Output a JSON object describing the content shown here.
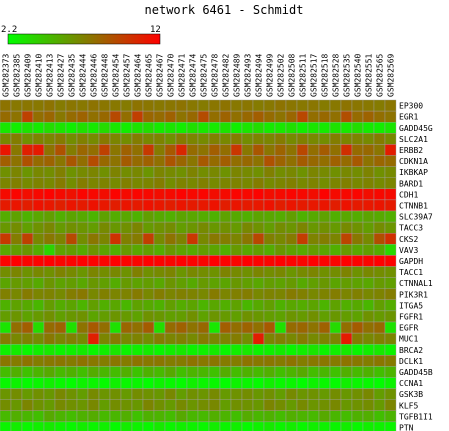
{
  "chart_data": {
    "type": "heatmap",
    "title": "network 6461 - Schmidt",
    "scale": {
      "min_label": "2.2",
      "max_label": "12",
      "min": 2.2,
      "max": 12,
      "low_color": "#00ff00",
      "mid_color": "#808000",
      "high_color": "#ff0000"
    },
    "columns": [
      "GSM282373",
      "GSM282385",
      "GSM282409",
      "GSM282410",
      "GSM282413",
      "GSM282427",
      "GSM282435",
      "GSM282444",
      "GSM282446",
      "GSM282448",
      "GSM282454",
      "GSM282457",
      "GSM282464",
      "GSM282465",
      "GSM282467",
      "GSM282470",
      "GSM282471",
      "GSM282474",
      "GSM282475",
      "GSM282478",
      "GSM282482",
      "GSM282489",
      "GSM282493",
      "GSM282494",
      "GSM282499",
      "GSM282502",
      "GSM282508",
      "GSM282511",
      "GSM282517",
      "GSM282518",
      "GSM282528",
      "GSM282535",
      "GSM282540",
      "GSM282551",
      "GSM282565",
      "GSM282569"
    ],
    "rows": [
      "EP300",
      "EGR1",
      "GADD45G",
      "SLC2A1",
      "ERBB2",
      "CDKN1A",
      "IKBKAP",
      "BARD1",
      "CDH1",
      "CTNNB1",
      "SLC39A7",
      "TACC3",
      "CKS2",
      "VAV3",
      "GAPDH",
      "TACC1",
      "CTNNAL1",
      "PIK3R1",
      "ITGA5",
      "FGFR1",
      "EGFR",
      "MUC1",
      "BRCA2",
      "DCLK1",
      "GADD45B",
      "CCNA1",
      "GSK3B",
      "KLF5",
      "TGFB1I1",
      "PTN"
    ],
    "values": [
      [
        7.6,
        7.4,
        7.5,
        7.4,
        7.6,
        7.3,
        7.5,
        7.4,
        7.6,
        7.5,
        7.4,
        7.3,
        7.6,
        7.5,
        7.4,
        7.5,
        7.6,
        7.4,
        7.3,
        7.5,
        7.6,
        7.4,
        7.5,
        7.3,
        7.4,
        7.6,
        7.5,
        7.4,
        7.5,
        7.3,
        7.4,
        7.6,
        7.5,
        7.4,
        7.3,
        7.5
      ],
      [
        7.9,
        7.6,
        9.5,
        7.8,
        8.1,
        7.4,
        7.9,
        8.2,
        7.7,
        8.0,
        9.2,
        7.8,
        9.6,
        8.1,
        7.9,
        8.3,
        7.6,
        8.0,
        9.1,
        7.8,
        8.2,
        7.7,
        8.0,
        8.4,
        7.9,
        7.6,
        8.1,
        9.3,
        7.8,
        8.0,
        7.7,
        9.0,
        7.9,
        8.2,
        7.8,
        7.6
      ],
      [
        3.1,
        2.9,
        3.3,
        3.0,
        3.5,
        3.2,
        2.8,
        3.4,
        3.0,
        3.6,
        3.1,
        2.9,
        3.3,
        3.5,
        3.0,
        3.2,
        2.9,
        3.4,
        3.1,
        3.0,
        3.3,
        2.8,
        3.2,
        3.5,
        3.0,
        3.1,
        3.4,
        2.9,
        3.2,
        3.0,
        3.3,
        3.1,
        3.5,
        3.0,
        2.9,
        3.2
      ],
      [
        6.8,
        7.2,
        6.5,
        7.0,
        6.9,
        7.3,
        6.6,
        7.1,
        6.7,
        7.4,
        6.9,
        6.6,
        7.2,
        6.8,
        7.0,
        6.5,
        7.3,
        6.9,
        6.7,
        7.1,
        6.8,
        7.2,
        6.6,
        7.0,
        6.9,
        7.3,
        6.7,
        7.1,
        6.8,
        6.6,
        7.2,
        6.9,
        7.0,
        6.7,
        7.3,
        6.8
      ],
      [
        11.2,
        7.4,
        10.8,
        11.0,
        7.6,
        8.9,
        7.2,
        8.1,
        7.8,
        9.5,
        7.5,
        8.3,
        7.7,
        9.8,
        7.3,
        8.6,
        10.5,
        7.9,
        7.6,
        8.4,
        7.8,
        9.9,
        7.4,
        8.7,
        7.5,
        8.2,
        7.6,
        9.3,
        7.8,
        8.5,
        7.7,
        10.2,
        7.9,
        8.0,
        7.5,
        10.9
      ],
      [
        8.4,
        7.6,
        8.9,
        7.9,
        8.2,
        7.5,
        8.7,
        7.8,
        9.1,
        8.0,
        7.6,
        8.5,
        7.9,
        8.3,
        7.7,
        8.8,
        8.1,
        7.5,
        8.6,
        7.9,
        8.4,
        7.8,
        8.0,
        7.6,
        8.9,
        8.2,
        7.7,
        8.5,
        8.0,
        7.8,
        8.3,
        7.9,
        8.6,
        7.6,
        8.1,
        7.9
      ],
      [
        6.5,
        6.9,
        6.3,
        6.8,
        6.6,
        7.1,
        6.4,
        6.7,
        6.9,
        6.5,
        7.0,
        6.6,
        6.8,
        6.3,
        6.9,
        6.7,
        6.5,
        7.0,
        6.6,
        6.8,
        6.4,
        6.9,
        6.7,
        6.5,
        7.1,
        6.6,
        6.8,
        6.4,
        6.9,
        6.7,
        6.5,
        6.8,
        6.6,
        7.0,
        6.5,
        6.7
      ],
      [
        6.9,
        7.1,
        6.7,
        7.0,
        6.8,
        7.3,
        6.6,
        7.2,
        6.9,
        7.0,
        6.7,
        7.1,
        6.8,
        6.9,
        7.2,
        6.6,
        7.0,
        6.8,
        7.1,
        6.7,
        6.9,
        7.0,
        6.8,
        7.2,
        6.7,
        6.9,
        7.1,
        6.8,
        7.0,
        6.6,
        6.9,
        7.1,
        6.8,
        7.0,
        6.7,
        6.9
      ],
      [
        11.6,
        11.8,
        11.5,
        11.7,
        11.9,
        11.6,
        11.4,
        11.8,
        11.7,
        11.5,
        11.9,
        11.6,
        11.8,
        11.7,
        11.5,
        11.6,
        11.9,
        11.7,
        11.8,
        11.5,
        11.6,
        11.8,
        11.7,
        11.9,
        11.5,
        11.6,
        11.8,
        11.7,
        11.5,
        11.9,
        11.6,
        11.7,
        11.8,
        11.5,
        11.7,
        11.6
      ],
      [
        11.0,
        11.2,
        10.9,
        11.3,
        11.1,
        10.8,
        11.2,
        11.0,
        11.3,
        11.1,
        10.9,
        11.2,
        11.0,
        11.3,
        11.1,
        10.9,
        11.2,
        11.0,
        11.1,
        11.3,
        10.9,
        11.2,
        11.0,
        11.1,
        11.3,
        10.9,
        11.2,
        11.0,
        11.1,
        11.2,
        10.9,
        11.3,
        11.0,
        11.1,
        11.2,
        11.0
      ],
      [
        5.4,
        5.8,
        5.2,
        5.6,
        5.9,
        5.3,
        5.7,
        5.5,
        5.1,
        5.8,
        5.4,
        5.6,
        5.2,
        5.9,
        5.5,
        5.3,
        5.7,
        5.6,
        5.4,
        5.2,
        5.8,
        5.5,
        5.3,
        5.7,
        5.6,
        5.4,
        5.9,
        5.2,
        5.5,
        5.8,
        5.3,
        5.6,
        5.4,
        5.7,
        5.5,
        5.3
      ],
      [
        6.2,
        6.6,
        5.9,
        6.4,
        6.8,
        6.1,
        6.5,
        6.3,
        6.0,
        6.7,
        6.2,
        6.5,
        6.9,
        6.1,
        6.4,
        6.6,
        6.0,
        6.3,
        6.7,
        6.2,
        6.5,
        6.1,
        6.8,
        6.4,
        6.0,
        6.6,
        6.3,
        6.9,
        6.2,
        6.5,
        6.1,
        6.7,
        6.4,
        6.0,
        6.6,
        6.3
      ],
      [
        9.8,
        7.2,
        9.5,
        6.8,
        7.4,
        7.0,
        9.2,
        6.6,
        7.5,
        6.9,
        10.1,
        7.1,
        7.3,
        9.6,
        6.7,
        7.6,
        7.0,
        9.9,
        6.8,
        7.4,
        7.2,
        6.9,
        7.5,
        9.3,
        7.1,
        6.8,
        7.3,
        9.7,
        7.0,
        7.2,
        6.9,
        9.4,
        7.4,
        6.7,
        9.0,
        10.2
      ],
      [
        5.6,
        5.9,
        6.2,
        5.4,
        3.9,
        5.8,
        6.0,
        5.5,
        6.3,
        5.7,
        5.3,
        6.1,
        5.6,
        5.9,
        5.4,
        6.2,
        5.8,
        5.5,
        6.0,
        5.7,
        5.3,
        6.1,
        5.6,
        5.9,
        5.4,
        6.2,
        5.8,
        5.5,
        6.0,
        5.7,
        5.3,
        6.1,
        5.6,
        5.9,
        5.4,
        3.8
      ],
      [
        11.9,
        12.0,
        11.8,
        11.9,
        12.0,
        11.8,
        11.9,
        12.0,
        11.9,
        11.8,
        12.0,
        11.9,
        11.8,
        12.0,
        11.9,
        11.8,
        12.0,
        11.9,
        11.8,
        12.0,
        11.9,
        11.8,
        12.0,
        11.9,
        11.8,
        12.0,
        11.9,
        11.8,
        12.0,
        11.9,
        11.8,
        12.0,
        11.9,
        11.8,
        12.0,
        11.9
      ],
      [
        6.6,
        6.9,
        6.4,
        6.8,
        6.5,
        7.0,
        6.7,
        6.3,
        6.9,
        6.6,
        6.8,
        6.4,
        7.1,
        6.5,
        6.7,
        6.9,
        6.3,
        6.8,
        6.6,
        6.4,
        7.0,
        6.7,
        6.5,
        6.9,
        6.6,
        6.8,
        6.3,
        6.7,
        6.9,
        6.5,
        6.6,
        7.0,
        6.4,
        6.8,
        6.6,
        6.5
      ],
      [
        5.7,
        6.1,
        5.9,
        5.5,
        6.3,
        5.8,
        6.0,
        5.6,
        6.2,
        5.9,
        5.4,
        6.1,
        5.8,
        6.0,
        5.6,
        6.3,
        5.9,
        5.5,
        6.1,
        5.8,
        5.7,
        6.2,
        5.9,
        5.6,
        6.0,
        5.8,
        6.1,
        5.5,
        5.9,
        6.2,
        5.7,
        6.0,
        5.8,
        5.6,
        6.1,
        5.9
      ],
      [
        7.1,
        6.8,
        7.3,
        6.9,
        7.0,
        6.7,
        7.2,
        7.4,
        6.8,
        7.1,
        6.9,
        7.0,
        7.3,
        6.8,
        7.2,
        6.9,
        7.1,
        7.0,
        6.8,
        7.3,
        6.9,
        7.1,
        7.2,
        6.8,
        7.0,
        6.9,
        7.3,
        7.1,
        6.8,
        7.0,
        7.2,
        6.9,
        7.1,
        6.8,
        7.0,
        7.2
      ],
      [
        5.2,
        5.8,
        5.5,
        5.0,
        6.0,
        5.4,
        5.7,
        5.1,
        5.9,
        5.3,
        5.6,
        5.0,
        5.8,
        5.5,
        5.2,
        5.9,
        5.4,
        5.7,
        5.1,
        5.6,
        5.3,
        5.8,
        5.0,
        5.5,
        5.9,
        5.2,
        5.6,
        5.4,
        5.7,
        5.1,
        5.8,
        5.3,
        5.5,
        5.0,
        5.9,
        5.4
      ],
      [
        6.0,
        6.3,
        5.8,
        6.1,
        6.5,
        5.9,
        6.2,
        6.4,
        5.7,
        6.0,
        6.3,
        6.1,
        5.8,
        6.4,
        6.2,
        5.9,
        6.0,
        6.5,
        5.8,
        6.3,
        6.1,
        5.9,
        6.4,
        6.2,
        6.0,
        5.8,
        6.3,
        6.1,
        6.5,
        5.9,
        6.2,
        6.0,
        5.8,
        6.4,
        6.1,
        6.3
      ],
      [
        3.2,
        7.8,
        8.4,
        3.6,
        7.9,
        8.2,
        3.4,
        7.6,
        8.6,
        7.8,
        3.3,
        8.1,
        7.7,
        8.5,
        3.5,
        7.9,
        8.3,
        7.6,
        8.0,
        3.1,
        8.4,
        7.8,
        8.2,
        7.7,
        8.6,
        3.4,
        7.9,
        8.1,
        7.6,
        8.3,
        3.6,
        7.8,
        8.5,
        7.7,
        8.0,
        3.3
      ],
      [
        7.2,
        6.8,
        7.0,
        6.6,
        7.4,
        6.9,
        7.1,
        6.7,
        10.8,
        6.9,
        7.3,
        6.8,
        7.0,
        6.6,
        7.2,
        6.9,
        7.1,
        6.7,
        7.3,
        6.8,
        7.0,
        7.2,
        6.6,
        10.9,
        6.9,
        7.1,
        6.8,
        7.3,
        6.7,
        7.0,
        6.9,
        11.0,
        7.2,
        6.8,
        7.1,
        6.9
      ],
      [
        2.8,
        3.0,
        2.6,
        2.9,
        3.1,
        2.7,
        2.8,
        3.0,
        2.6,
        2.9,
        3.2,
        2.7,
        2.8,
        3.0,
        2.6,
        2.9,
        3.1,
        2.7,
        2.8,
        3.0,
        2.6,
        2.9,
        3.1,
        2.7,
        2.8,
        3.0,
        2.6,
        2.9,
        3.2,
        2.7,
        2.8,
        3.0,
        2.6,
        2.9,
        3.1,
        2.7
      ],
      [
        7.5,
        7.3,
        7.6,
        7.2,
        7.4,
        7.5,
        7.3,
        7.6,
        7.4,
        7.2,
        7.5,
        7.3,
        7.6,
        7.4,
        7.5,
        7.2,
        7.3,
        7.6,
        7.4,
        7.5,
        7.3,
        7.2,
        7.6,
        7.4,
        7.5,
        7.3,
        7.6,
        7.2,
        7.4,
        7.5,
        7.3,
        7.6,
        7.4,
        7.2,
        7.5,
        7.3
      ],
      [
        4.8,
        5.3,
        4.6,
        5.1,
        5.5,
        4.9,
        5.2,
        4.7,
        5.4,
        5.0,
        4.8,
        5.3,
        4.5,
        5.2,
        4.9,
        5.5,
        4.7,
        5.1,
        5.0,
        4.6,
        5.4,
        4.8,
        5.2,
        4.9,
        5.3,
        4.7,
        5.1,
        5.5,
        4.8,
        5.0,
        4.6,
        5.3,
        4.9,
        5.2,
        4.7,
        5.1
      ],
      [
        2.5,
        2.7,
        2.4,
        2.6,
        2.8,
        2.5,
        2.3,
        2.7,
        2.6,
        2.4,
        2.8,
        2.5,
        2.6,
        2.3,
        2.7,
        2.5,
        2.4,
        2.8,
        2.6,
        2.5,
        2.3,
        2.7,
        2.6,
        2.4,
        2.8,
        2.5,
        2.6,
        2.3,
        2.7,
        2.5,
        2.4,
        2.8,
        2.6,
        2.5,
        2.3,
        2.7
      ],
      [
        6.3,
        6.6,
        6.1,
        6.5,
        6.2,
        6.8,
        6.4,
        6.0,
        6.7,
        6.3,
        6.5,
        6.1,
        6.6,
        6.4,
        6.2,
        6.8,
        6.0,
        6.5,
        6.3,
        6.7,
        6.1,
        6.4,
        6.6,
        6.2,
        6.5,
        6.0,
        6.7,
        6.3,
        6.4,
        6.1,
        6.6,
        6.2,
        6.5,
        6.8,
        6.0,
        6.4
      ],
      [
        6.6,
        6.2,
        6.9,
        6.4,
        6.1,
        6.7,
        6.5,
        6.3,
        6.8,
        6.0,
        6.6,
        6.4,
        6.2,
        6.9,
        6.5,
        6.1,
        6.7,
        6.3,
        6.6,
        6.8,
        6.0,
        6.5,
        6.4,
        6.2,
        6.9,
        6.6,
        6.1,
        6.7,
        6.3,
        6.5,
        6.8,
        6.2,
        6.4,
        6.6,
        6.1,
        6.9
      ],
      [
        4.9,
        5.3,
        5.0,
        4.7,
        5.5,
        5.1,
        4.8,
        5.2,
        5.4,
        4.9,
        5.0,
        5.3,
        4.6,
        5.2,
        5.1,
        4.8,
        5.5,
        5.0,
        4.9,
        5.3,
        5.1,
        4.7,
        5.4,
        5.0,
        5.2,
        4.8,
        5.3,
        5.1,
        4.9,
        5.5,
        5.0,
        4.8,
        5.2,
        5.3,
        4.7,
        5.1
      ],
      [
        2.6,
        2.9,
        2.5,
        2.8,
        3.0,
        2.7,
        2.5,
        2.9,
        2.6,
        2.8,
        2.4,
        2.9,
        2.7,
        2.5,
        3.0,
        2.6,
        2.8,
        2.7,
        2.5,
        2.9,
        2.6,
        2.8,
        2.4,
        2.7,
        3.0,
        2.6,
        2.9,
        2.5,
        2.8,
        2.7,
        2.6,
        2.9,
        2.5,
        2.8,
        2.7,
        2.6
      ]
    ]
  }
}
